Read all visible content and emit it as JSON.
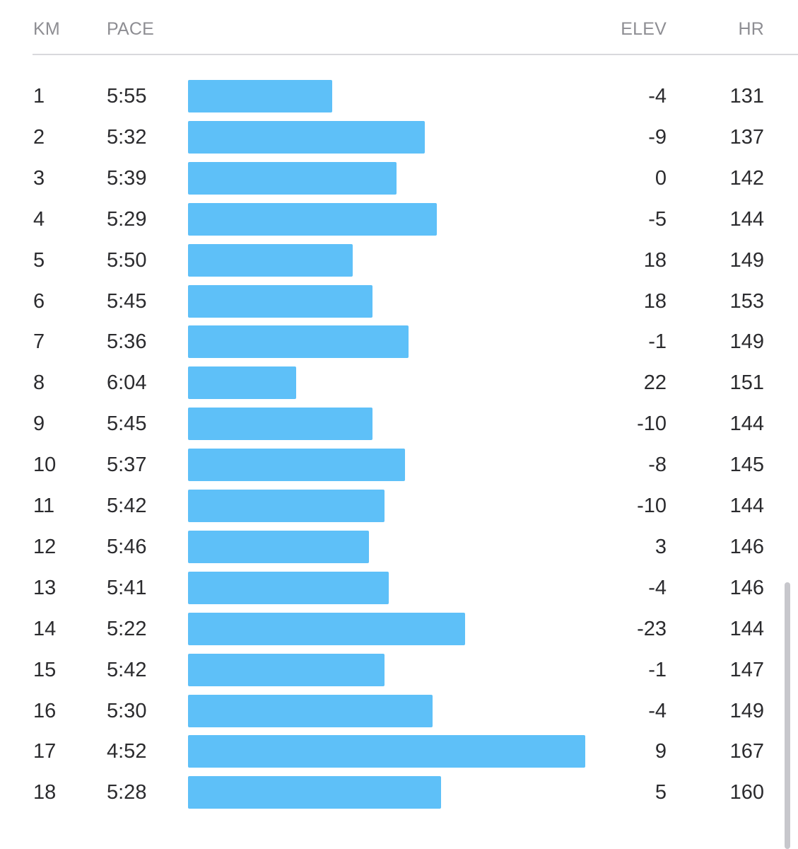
{
  "header": {
    "km": "KM",
    "pace": "PACE",
    "elev": "ELEV",
    "hr": "HR"
  },
  "colors": {
    "bar": "#5ec0f8",
    "header_text": "#8e8e93",
    "text": "#2b2b2e"
  },
  "splits": [
    {
      "km": "1",
      "pace": "5:55",
      "elev": "-4",
      "hr": "131"
    },
    {
      "km": "2",
      "pace": "5:32",
      "elev": "-9",
      "hr": "137"
    },
    {
      "km": "3",
      "pace": "5:39",
      "elev": "0",
      "hr": "142"
    },
    {
      "km": "4",
      "pace": "5:29",
      "elev": "-5",
      "hr": "144"
    },
    {
      "km": "5",
      "pace": "5:50",
      "elev": "18",
      "hr": "149"
    },
    {
      "km": "6",
      "pace": "5:45",
      "elev": "18",
      "hr": "153"
    },
    {
      "km": "7",
      "pace": "5:36",
      "elev": "-1",
      "hr": "149"
    },
    {
      "km": "8",
      "pace": "6:04",
      "elev": "22",
      "hr": "151"
    },
    {
      "km": "9",
      "pace": "5:45",
      "elev": "-10",
      "hr": "144"
    },
    {
      "km": "10",
      "pace": "5:37",
      "elev": "-8",
      "hr": "145"
    },
    {
      "km": "11",
      "pace": "5:42",
      "elev": "-10",
      "hr": "144"
    },
    {
      "km": "12",
      "pace": "5:46",
      "elev": "3",
      "hr": "146"
    },
    {
      "km": "13",
      "pace": "5:41",
      "elev": "-4",
      "hr": "146"
    },
    {
      "km": "14",
      "pace": "5:22",
      "elev": "-23",
      "hr": "144"
    },
    {
      "km": "15",
      "pace": "5:42",
      "elev": "-1",
      "hr": "147"
    },
    {
      "km": "16",
      "pace": "5:30",
      "elev": "-4",
      "hr": "149"
    },
    {
      "km": "17",
      "pace": "4:52",
      "elev": "9",
      "hr": "167"
    },
    {
      "km": "18",
      "pace": "5:28",
      "elev": "5",
      "hr": "160"
    }
  ]
}
